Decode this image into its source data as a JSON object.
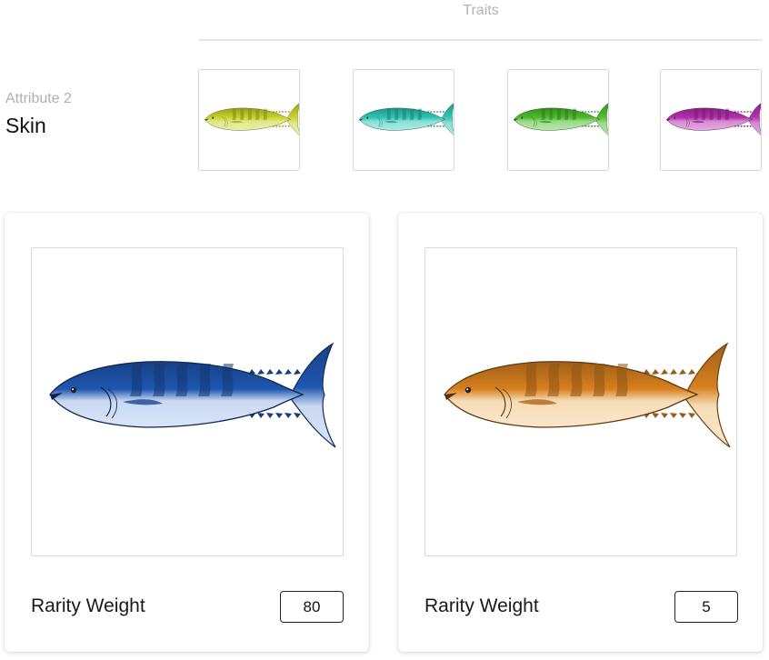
{
  "traits_heading": "Traits",
  "attribute": {
    "caption": "Attribute 2",
    "name": "Skin"
  },
  "thumbnails": [
    {
      "icon": "fish-icon",
      "color": "#c8d42a"
    },
    {
      "icon": "fish-icon",
      "color": "#2fc4b2"
    },
    {
      "icon": "fish-icon",
      "color": "#4cbc2c"
    },
    {
      "icon": "fish-icon",
      "color": "#b22fae"
    }
  ],
  "cards": [
    {
      "icon": "fish-icon",
      "color_dark": "#1f56b0",
      "color_light": "#c9d9f2",
      "rarity_label": "Rarity Weight",
      "rarity_value": "80"
    },
    {
      "icon": "fish-icon",
      "color_dark": "#d7801f",
      "color_light": "#f6dcb6",
      "rarity_label": "Rarity Weight",
      "rarity_value": "5"
    }
  ]
}
